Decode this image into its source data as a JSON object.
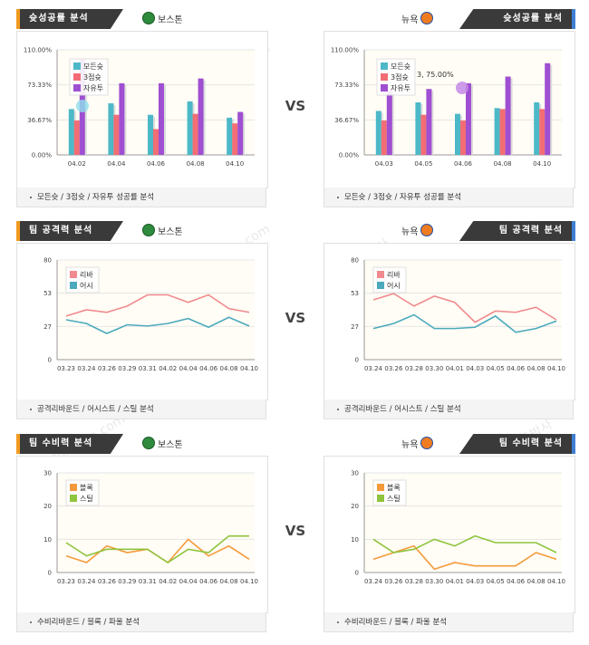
{
  "colors": {
    "accent_left": "#f39a1f",
    "accent_right": "#3e7fd3",
    "bar1": "#4db8c7",
    "bar2": "#f26d74",
    "bar3": "#9f4fd1",
    "line1": "#f08a8f",
    "line2": "#4ba9bd",
    "line3": "#f59a3c",
    "line4": "#8fc43e"
  },
  "vs_label": "VS",
  "watermark": {
    "text1": "토토박사",
    "text2": "totobaksa.com"
  },
  "sections": [
    {
      "left": {
        "title": "슛성공률 분석",
        "team": "보스톤",
        "team_icon": "celtics-logo"
      },
      "right": {
        "title": "슛성공률 분석",
        "team": "뉴욕",
        "team_icon": "knicks-logo"
      },
      "footer": "모든슛 / 3점슛 / 자유투 성공률 분석"
    },
    {
      "left": {
        "title": "팀 공격력 분석",
        "team": "보스톤",
        "team_icon": "celtics-logo"
      },
      "right": {
        "title": "팀 공격력 분석",
        "team": "뉴욕",
        "team_icon": "knicks-logo"
      },
      "footer": "공격리바운드 / 어시스트 / 스틸 분석"
    },
    {
      "left": {
        "title": "팀 수비력 분석",
        "team": "보스톤",
        "team_icon": "celtics-logo"
      },
      "right": {
        "title": "팀 수비력 분석",
        "team": "뉴욕",
        "team_icon": "knicks-logo"
      },
      "footer": "수비리바운드 / 블록 / 파울 분석"
    }
  ],
  "chart_data": [
    {
      "id": "boston-shooting",
      "type": "bar",
      "categories": [
        "04.02",
        "04.04",
        "04.06",
        "04.08",
        "04.10"
      ],
      "yticks": [
        "0.00%",
        "36.67%",
        "73.33%",
        "110.00%"
      ],
      "ylim": [
        0,
        110
      ],
      "series": [
        {
          "name": "모든슛",
          "values": [
            48,
            54,
            42,
            56,
            39
          ]
        },
        {
          "name": "3점슛",
          "values": [
            36,
            42,
            27,
            43,
            33
          ]
        },
        {
          "name": "자유투",
          "values": [
            100,
            75,
            75,
            80,
            45
          ]
        }
      ],
      "legend": "top-left"
    },
    {
      "id": "newyork-shooting",
      "type": "bar",
      "categories": [
        "04.03",
        "04.05",
        "04.06",
        "04.08",
        "04.10"
      ],
      "yticks": [
        "0.00%",
        "36.67%",
        "73.33%",
        "110.00%"
      ],
      "ylim": [
        0,
        110
      ],
      "series": [
        {
          "name": "모든슛",
          "values": [
            46,
            55,
            43,
            49,
            55
          ]
        },
        {
          "name": "3점슛",
          "values": [
            36,
            42,
            36,
            48,
            48
          ]
        },
        {
          "name": "자유투",
          "values": [
            67,
            69,
            75,
            82,
            96
          ]
        }
      ],
      "annotation": "3, 75.00%",
      "legend": "top-left"
    },
    {
      "id": "boston-offense",
      "type": "line",
      "categories": [
        "03.23",
        "03.24",
        "03.26",
        "03.29",
        "03.31",
        "04.02",
        "04.04",
        "04.06",
        "04.08",
        "04.10"
      ],
      "yticks": [
        "0",
        "27",
        "53",
        "80"
      ],
      "ylim": [
        0,
        80
      ],
      "series": [
        {
          "name": "리바",
          "values": [
            35,
            40,
            38,
            43,
            52,
            52,
            46,
            52,
            41,
            38
          ]
        },
        {
          "name": "어시",
          "values": [
            32,
            29,
            21,
            28,
            27,
            29,
            33,
            26,
            34,
            27
          ]
        }
      ],
      "legend": "top-left"
    },
    {
      "id": "newyork-offense",
      "type": "line",
      "categories": [
        "03.24",
        "03.26",
        "03.28",
        "03.30",
        "04.01",
        "04.03",
        "04.05",
        "04.06",
        "04.08",
        "04.10"
      ],
      "yticks": [
        "0",
        "27",
        "53",
        "80"
      ],
      "ylim": [
        0,
        80
      ],
      "series": [
        {
          "name": "리바",
          "values": [
            48,
            53,
            43,
            51,
            46,
            30,
            39,
            38,
            42,
            32
          ]
        },
        {
          "name": "어시",
          "values": [
            25,
            29,
            36,
            25,
            25,
            26,
            35,
            22,
            25,
            31
          ]
        }
      ],
      "legend": "top-left"
    },
    {
      "id": "boston-defense",
      "type": "line",
      "categories": [
        "03.23",
        "03.24",
        "03.26",
        "03.29",
        "03.31",
        "04.02",
        "04.04",
        "04.06",
        "04.08",
        "04.10"
      ],
      "yticks": [
        "0",
        "10",
        "20",
        "30"
      ],
      "ylim": [
        0,
        30
      ],
      "series": [
        {
          "name": "블록",
          "values": [
            5,
            3,
            8,
            6,
            7,
            3,
            10,
            5,
            8,
            4
          ]
        },
        {
          "name": "스틸",
          "values": [
            9,
            5,
            7,
            7,
            7,
            3,
            7,
            6,
            11,
            11
          ]
        }
      ],
      "legend": "top-left"
    },
    {
      "id": "newyork-defense",
      "type": "line",
      "categories": [
        "03.24",
        "03.26",
        "03.28",
        "03.30",
        "04.01",
        "04.03",
        "04.05",
        "04.06",
        "04.08",
        "04.10"
      ],
      "yticks": [
        "0",
        "10",
        "20",
        "30"
      ],
      "ylim": [
        0,
        30
      ],
      "series": [
        {
          "name": "블록",
          "values": [
            4,
            6,
            8,
            1,
            3,
            2,
            2,
            2,
            6,
            4
          ]
        },
        {
          "name": "스틸",
          "values": [
            10,
            6,
            7,
            10,
            8,
            11,
            9,
            9,
            9,
            6
          ]
        }
      ],
      "legend": "top-left"
    }
  ]
}
